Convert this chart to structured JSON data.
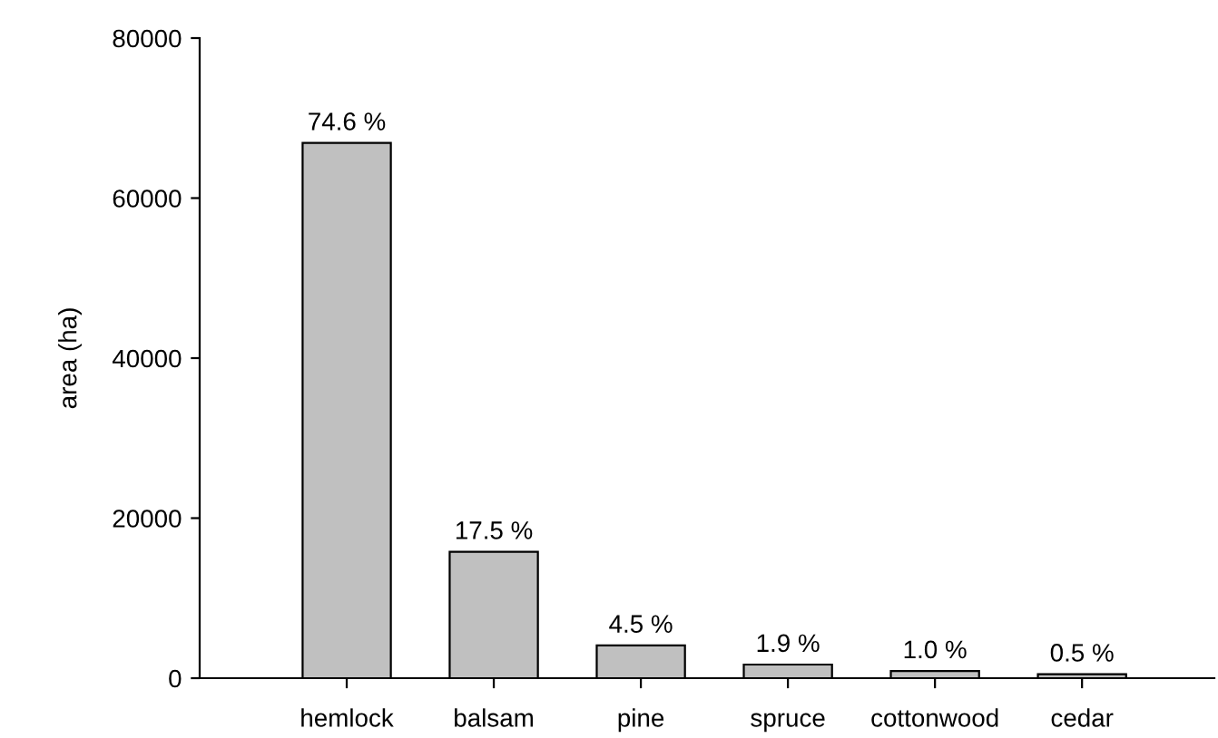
{
  "chart_data": {
    "type": "bar",
    "ylabel": "area (ha)",
    "categories": [
      "hemlock",
      "balsam",
      "pine",
      "spruce",
      "cottonwood",
      "cedar"
    ],
    "values": [
      66900,
      15800,
      4100,
      1700,
      900,
      500
    ],
    "annotations": [
      {
        "text": "74.6 %",
        "x": "hemlock",
        "y": 66900
      },
      {
        "text": "17.5 %",
        "x": "balsam",
        "y": 15800
      },
      {
        "text": "4.5 %",
        "x": "pine",
        "y": 4100
      },
      {
        "text": "1.9 %",
        "x": "spruce",
        "y": 1700
      },
      {
        "text": "1.0 %",
        "x": "cottonwood",
        "y": 900
      },
      {
        "text": "0.5 %",
        "x": "cedar",
        "y": 500
      }
    ],
    "color": "#c0c0c0",
    "ylim": [
      0,
      80000
    ],
    "yticks": [
      0,
      20000,
      40000,
      60000,
      80000
    ],
    "grid": false,
    "legend": false
  }
}
